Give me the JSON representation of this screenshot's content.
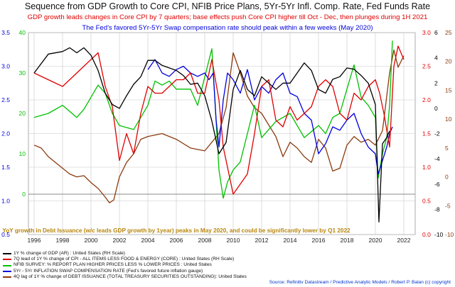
{
  "header": {
    "title": "Sequence from GDP Growth to Core CPI, NFIB Price Plans, 5Yr-5Yr Infl. Comp. Rate, Fed Funds Rate",
    "subtitle_red": "GDP growth leads changes in Core CPI by 7 quarters; base effects push Core CPI higher till Oct - Dec, then plunges during 1H 2021",
    "subtitle_blue": "The Fed's favored 5Yr-5Yr Swap compensation rate should peak within a few weeks (May 2020)"
  },
  "annotation": "YoY growth in Debt Issuance (w/c leads GDP growth by 1year) peaks in May 2020, and could be significantly lower by Q1 2022",
  "source": "Source: Refinitiv Datastream /  Predictive Analytic Models  / Robert P. Balan (c) copyright",
  "colors": {
    "gdp": "#000000",
    "core_cpi": "#e00000",
    "nfib": "#00c000",
    "swap5y5y": "#0000dd",
    "debt": "#8b3a0e",
    "annotation": "#b8860b",
    "grid": "#c8c8c8",
    "zero": "#888888"
  },
  "legend": [
    {
      "color": "#000000",
      "label": "1Y % change of GDP (AR) : United States (RH Scale)"
    },
    {
      "color": "#e00000",
      "label": "7Q lead of 1Y % change of CPI - ALL ITEMS LESS FOOD & ENERGY (CORE) : United States (RH Scale)"
    },
    {
      "color": "#00c000",
      "label": "NFIB SURVEY: % REPORT PLAN HIGHER PRICES LESS % LOWER PRICES : United States"
    },
    {
      "color": "#0000dd",
      "label": "5Yr - 5Yr INFLATION SWAP COMPENSATION RATE (Fed's favored future inflation gauge)"
    },
    {
      "color": "#8b3a0e",
      "label": "4Q lag of 1Y % change of DEBT ISSUANCE (TOTAL TREASURY SECURITIES OUTSTANDING): United States"
    }
  ],
  "chart_data": {
    "type": "line",
    "x_ticks": [
      "1996",
      "1998",
      "2000",
      "2002",
      "2004",
      "2006",
      "2008",
      "2010",
      "2012",
      "2014",
      "2016",
      "2018",
      "2020",
      "2022"
    ],
    "xlim": [
      1995.6,
      2022.8
    ],
    "axes": {
      "left_blue": {
        "ticks": [
          "3.5",
          "3.0",
          "2.5",
          "2.0",
          "1.5",
          "1.0",
          "0.5"
        ],
        "ylim": [
          0.5,
          3.5
        ],
        "color": "#0000dd"
      },
      "left_green": {
        "ticks": [
          "40",
          "30",
          "20",
          "10",
          "0"
        ],
        "ylim": [
          -10,
          40
        ],
        "color": "#00c000"
      },
      "right_red": {
        "ticks": [
          "3.0",
          "2.5",
          "2.0",
          "1.5",
          "1.0",
          "0.5",
          "0.0"
        ],
        "ylim": [
          0,
          3.0
        ],
        "color": "#e00000"
      },
      "right_black": {
        "ticks": [
          "6",
          "4",
          "2",
          "0",
          "-2",
          "-4",
          "-6",
          "-8",
          "-10"
        ],
        "ylim": [
          -10,
          6
        ],
        "color": "#000000"
      },
      "right_brown": {
        "ticks": [
          "25",
          "20",
          "15",
          "10",
          "5",
          "0",
          "-5",
          "-10"
        ],
        "ylim": [
          -10,
          25
        ],
        "color": "#8b3a0e"
      }
    },
    "series": [
      {
        "name": "1Y % change of GDP (AR) : United States (RH Scale)",
        "color": "#000000",
        "axis": "right_black",
        "x": [
          1996,
          1997,
          1998,
          1998.5,
          1999,
          1999.5,
          2000,
          2000.5,
          2001,
          2001.5,
          2002,
          2002.5,
          2003,
          2003.5,
          2004,
          2004.5,
          2005,
          2006,
          2006.5,
          2007,
          2007.5,
          2008,
          2008.5,
          2009,
          2009.5,
          2010,
          2010.5,
          2011,
          2011.5,
          2012,
          2012.5,
          2013,
          2013.5,
          2014,
          2014.5,
          2015,
          2015.5,
          2016,
          2016.5,
          2017,
          2017.5,
          2018,
          2018.5,
          2019,
          2019.5,
          2020,
          2020.25,
          2020.5,
          2020.75,
          2021
        ],
        "y": [
          2.8,
          4.3,
          4.5,
          4.8,
          4.4,
          4.8,
          4.2,
          3.0,
          1.2,
          0.3,
          0.0,
          1.0,
          1.9,
          2.5,
          3.8,
          3.8,
          3.4,
          3.0,
          2.6,
          1.9,
          2.0,
          1.0,
          -1.0,
          -3.6,
          -2.7,
          1.5,
          3.0,
          1.5,
          1.0,
          2.5,
          2.0,
          1.5,
          2.0,
          2.0,
          2.8,
          3.6,
          3.0,
          1.5,
          1.2,
          2.3,
          2.5,
          3.2,
          3.1,
          2.6,
          2.0,
          0.3,
          -9.0,
          -2.8,
          -2.4,
          -1.8
        ]
      },
      {
        "name": "7Q lead of 1Y % change of CPI - ALL ITEMS LESS FOOD & ENERGY (CORE) : United States (RH Scale)",
        "color": "#e00000",
        "axis": "right_red",
        "x": [
          1996,
          1997,
          1998,
          1999,
          2000,
          2000.5,
          2001,
          2001.5,
          2002,
          2002.5,
          2003,
          2003.5,
          2004,
          2004.5,
          2005,
          2006,
          2006.5,
          2007,
          2007.5,
          2008,
          2008.5,
          2009,
          2009.3,
          2009.6,
          2010,
          2011,
          2011.5,
          2012,
          2012.5,
          2013,
          2013.5,
          2014,
          2014.5,
          2015,
          2015.5,
          2016,
          2016.5,
          2017,
          2017.5,
          2018,
          2018.5,
          2019,
          2019.5,
          2020,
          2020.3,
          2020.6,
          2021,
          2021.3,
          2021.6,
          2022
        ],
        "y": [
          2.4,
          2.3,
          2.2,
          2.4,
          2.6,
          2.7,
          2.2,
          1.9,
          1.1,
          1.5,
          1.2,
          1.8,
          2.2,
          2.1,
          2.1,
          2.3,
          2.3,
          2.4,
          2.1,
          2.1,
          2.6,
          2.0,
          1.3,
          1.0,
          0.6,
          0.9,
          1.5,
          2.2,
          2.3,
          1.7,
          1.6,
          1.9,
          1.7,
          1.8,
          1.9,
          2.2,
          2.3,
          2.2,
          1.8,
          1.7,
          2.1,
          2.0,
          2.2,
          2.3,
          2.1,
          1.8,
          1.3,
          2.5,
          2.8,
          2.6
        ]
      },
      {
        "name": "NFIB SURVEY: % REPORT PLAN HIGHER PRICES LESS % LOWER PRICES : United States",
        "color": "#00c000",
        "axis": "left_green",
        "x": [
          1996,
          1997,
          1998,
          1999,
          1999.5,
          2000,
          2000.5,
          2001,
          2001.5,
          2002,
          2003,
          2004,
          2004.5,
          2005,
          2005.5,
          2006,
          2007,
          2007.5,
          2008,
          2008.5,
          2009,
          2009.3,
          2009.6,
          2010,
          2010.5,
          2011,
          2011.5,
          2012,
          2013,
          2014,
          2015,
          2016,
          2016.5,
          2017,
          2017.5,
          2018,
          2018.5,
          2019,
          2019.5,
          2020,
          2020.2,
          2020.5,
          2020.8,
          2021,
          2021.2
        ],
        "y": [
          19,
          20,
          22,
          19,
          21,
          24,
          27,
          25,
          20,
          17,
          16,
          22,
          28,
          27,
          28,
          26,
          26,
          22,
          29,
          36,
          6,
          -1,
          3,
          6,
          8,
          15,
          22,
          14,
          18,
          20,
          14,
          17,
          15,
          19,
          20,
          26,
          32,
          24,
          22,
          19,
          4,
          10,
          14,
          22,
          38
        ]
      },
      {
        "name": "5Yr - 5Yr INFLATION SWAP COMPENSATION RATE (Fed's favored future inflation gauge)",
        "color": "#0000dd",
        "axis": "left_blue",
        "x": [
          2004,
          2004.5,
          2005,
          2005.5,
          2006,
          2006.5,
          2007,
          2007.5,
          2008,
          2008.3,
          2008.6,
          2008.8,
          2009,
          2009.3,
          2009.6,
          2010,
          2010.5,
          2011,
          2011.5,
          2012,
          2012.5,
          2013,
          2013.5,
          2014,
          2014.5,
          2015,
          2015.5,
          2016,
          2016.5,
          2017,
          2017.5,
          2018,
          2018.5,
          2019,
          2019.5,
          2020,
          2020.2,
          2020.5,
          2020.8,
          2021,
          2021.2
        ],
        "y": [
          2.95,
          3.1,
          2.9,
          2.85,
          2.95,
          3.0,
          2.9,
          2.85,
          2.9,
          2.8,
          2.9,
          2.2,
          1.8,
          2.5,
          2.9,
          2.8,
          2.6,
          2.95,
          2.5,
          2.7,
          2.6,
          2.8,
          2.9,
          2.6,
          2.55,
          2.3,
          2.2,
          1.7,
          1.85,
          2.1,
          2.05,
          2.2,
          2.3,
          2.0,
          1.8,
          1.7,
          1.4,
          1.6,
          1.8,
          2.0,
          2.1
        ]
      },
      {
        "name": "4Q lag of 1Y % change of DEBT ISSUANCE (TOTAL TREASURY SECURITIES OUTSTANDING): United States",
        "color": "#8b3a0e",
        "axis": "right_brown",
        "x": [
          1996,
          1996.5,
          1997,
          1997.5,
          1998,
          1998.5,
          1999,
          1999.5,
          2000,
          2000.5,
          2001,
          2001.3,
          2001.6,
          2002,
          2002.5,
          2003,
          2003.5,
          2004,
          2005,
          2006,
          2007,
          2008,
          2008.5,
          2009,
          2009.5,
          2010,
          2010.5,
          2011,
          2011.5,
          2012,
          2013,
          2013.5,
          2014,
          2014.5,
          2015,
          2015.5,
          2016,
          2016.5,
          2017,
          2017.5,
          2018,
          2018.5,
          2019,
          2019.5,
          2020,
          2020.5,
          2021,
          2021.3,
          2021.6,
          2022
        ],
        "y": [
          5.5,
          5.0,
          3.5,
          2.5,
          1.5,
          0.5,
          0.0,
          0.2,
          -1.0,
          -2.0,
          -3.5,
          -4.5,
          -4.0,
          0.0,
          2.5,
          4.0,
          6.5,
          7.0,
          7.5,
          6.5,
          5.0,
          4.5,
          6.0,
          7.5,
          12.0,
          21.5,
          18.0,
          14.0,
          12.0,
          11.0,
          7.0,
          3.5,
          6.0,
          5.0,
          3.5,
          2.5,
          6.5,
          5.0,
          1.0,
          1.5,
          5.5,
          7.0,
          6.0,
          6.5,
          5.5,
          8.0,
          18.0,
          22.0,
          19.0,
          21.0
        ]
      }
    ],
    "zero_line": {
      "axis": "left_green",
      "value": 0
    },
    "grid": true
  }
}
